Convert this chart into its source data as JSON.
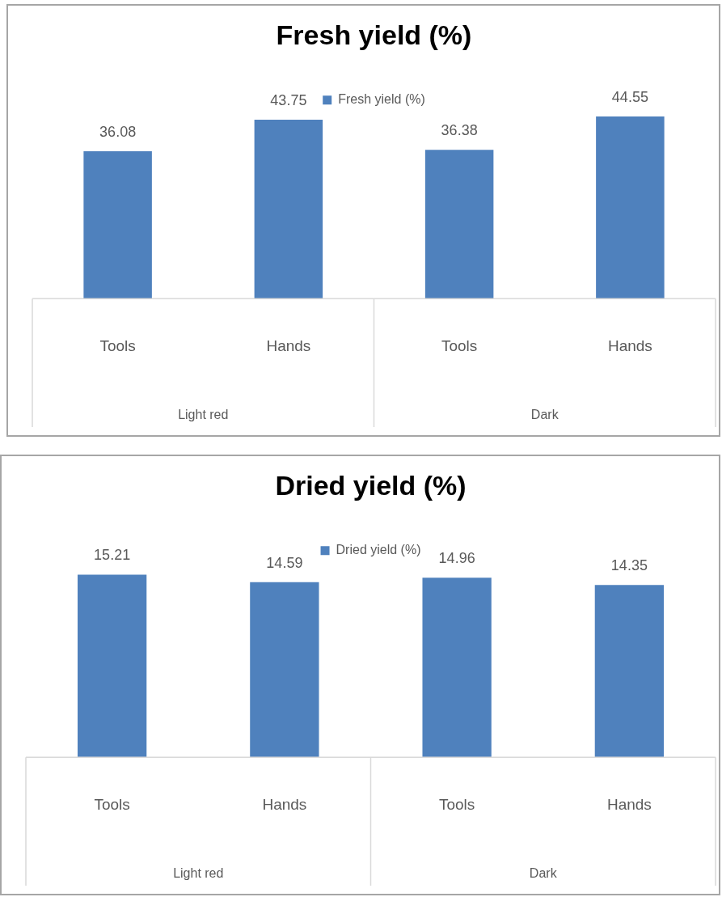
{
  "chart_data": [
    {
      "type": "bar",
      "title": "Fresh yield (%)",
      "categories": [
        "Tools",
        "Hands",
        "Tools",
        "Hands"
      ],
      "series": [
        {
          "name": "Fresh yield (%)",
          "color": "#4f81bd",
          "values": [
            36.08,
            43.75,
            36.38,
            44.55
          ]
        }
      ],
      "data_labels": true,
      "legend": "top",
      "grid": false,
      "tick_labels": "x",
      "annotations": [
        "Light red",
        "Dark"
      ]
    },
    {
      "type": "bar",
      "title": "Dried yield (%)",
      "categories": [
        "Tools",
        "Hands",
        "Tools",
        "Hands"
      ],
      "series": [
        {
          "name": "Dried yield (%)",
          "color": "#4f81bd",
          "values": [
            15.21,
            14.59,
            14.96,
            14.35
          ]
        }
      ],
      "data_labels": true,
      "legend": "top",
      "grid": false,
      "tick_labels": "x",
      "annotations": [
        "Light red",
        "Dark"
      ]
    }
  ]
}
